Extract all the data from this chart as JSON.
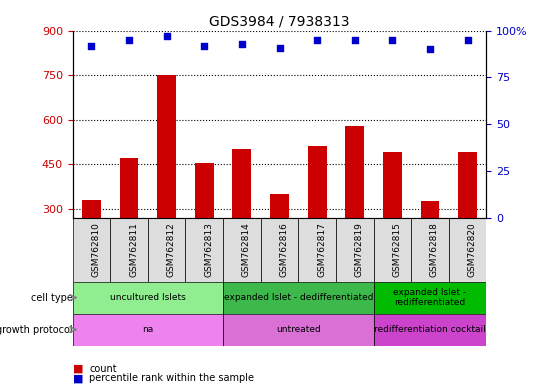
{
  "title": "GDS3984 / 7938313",
  "samples": [
    "GSM762810",
    "GSM762811",
    "GSM762812",
    "GSM762813",
    "GSM762814",
    "GSM762816",
    "GSM762817",
    "GSM762819",
    "GSM762815",
    "GSM762818",
    "GSM762820"
  ],
  "counts": [
    330,
    470,
    750,
    455,
    500,
    350,
    510,
    580,
    490,
    325,
    490
  ],
  "percentile_ranks": [
    92,
    95,
    97,
    92,
    93,
    91,
    95,
    95,
    95,
    90,
    95
  ],
  "ylim_left": [
    270,
    900
  ],
  "ylim_right": [
    0,
    100
  ],
  "yticks_left": [
    300,
    450,
    600,
    750,
    900
  ],
  "yticks_right": [
    0,
    25,
    50,
    75,
    100
  ],
  "cell_type_groups": [
    {
      "label": "uncultured Islets",
      "start": 0,
      "end": 4,
      "color": "#90EE90"
    },
    {
      "label": "expanded Islet - dedifferentiated",
      "start": 4,
      "end": 8,
      "color": "#3CB94A"
    },
    {
      "label": "expanded Islet -\nredifferentiated",
      "start": 8,
      "end": 11,
      "color": "#00BB00"
    }
  ],
  "growth_protocol_groups": [
    {
      "label": "na",
      "start": 0,
      "end": 4,
      "color": "#EE82EE"
    },
    {
      "label": "untreated",
      "start": 4,
      "end": 8,
      "color": "#DA70D6"
    },
    {
      "label": "redifferentiation cocktail",
      "start": 8,
      "end": 11,
      "color": "#CC44CC"
    }
  ],
  "bar_color": "#CC0000",
  "dot_color": "#0000CC",
  "grid_color": "#000000",
  "tick_color_left": "#CC0000",
  "tick_color_right": "#0000CC",
  "bar_width": 0.5,
  "sample_box_color": "#DDDDDD"
}
